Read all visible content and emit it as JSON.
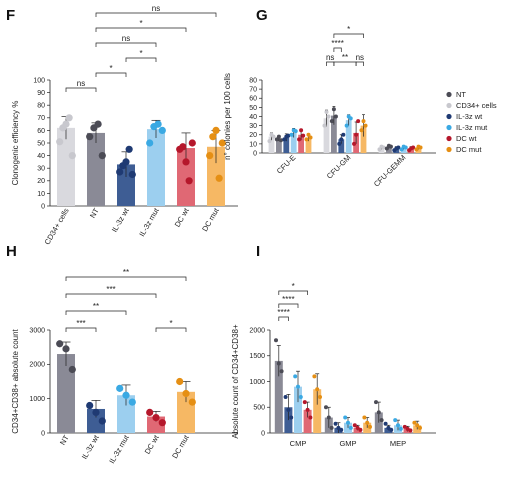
{
  "panels": [
    {
      "letter": "F",
      "type": "bar",
      "ylabel": "Clonogenic efficiency %",
      "ylim": [
        0,
        100
      ],
      "yticks": [
        0,
        10,
        20,
        30,
        40,
        50,
        60,
        70,
        80,
        90,
        100
      ],
      "categories": [
        "CD34+ cells",
        "NT",
        "IL-3z wt",
        "IL-3z mut",
        "DC wt",
        "DC mut"
      ],
      "colors": [
        "#d9d9de",
        "#8a8a96",
        "#3e5d94",
        "#9ccfef",
        "#e06874",
        "#f6b864"
      ],
      "dot_colors": [
        "#c8c8ce",
        "#4b4b55",
        "#1f3a73",
        "#3aa9e3",
        "#b5172b",
        "#e58f14"
      ],
      "means": [
        62,
        58,
        33,
        61,
        46,
        47
      ],
      "errors": [
        9,
        8,
        10,
        7,
        12,
        13
      ],
      "points": [
        [
          51,
          62,
          65,
          70,
          40
        ],
        [
          55,
          62,
          65,
          40
        ],
        [
          27,
          32,
          35,
          45,
          25
        ],
        [
          50,
          63,
          65,
          60
        ],
        [
          45,
          47,
          35,
          20,
          50
        ],
        [
          40,
          55,
          60,
          22,
          50
        ]
      ],
      "comparisons": [
        {
          "from": 0,
          "to": 1,
          "label": "ns"
        },
        {
          "from": 1,
          "to": 2,
          "label": "*"
        },
        {
          "from": 2,
          "to": 3,
          "label": "*"
        },
        {
          "from": 1,
          "to": 3,
          "label": "ns"
        },
        {
          "from": 1,
          "to": 4,
          "label": "*"
        },
        {
          "from": 1,
          "to": 5,
          "label": "ns"
        }
      ]
    },
    {
      "letter": "G",
      "type": "grouped-bar",
      "ylabel": "n° colonies per 100 cells",
      "ylim": [
        0,
        80
      ],
      "yticks": [
        0,
        10,
        20,
        30,
        40,
        50,
        60,
        70,
        80
      ],
      "groups": [
        "CFU-E",
        "CFU-GM",
        "CFU-GEMM"
      ],
      "series_names": [
        "NT",
        "CD34+ cells",
        "IL-3z wt",
        "IL-3z mut",
        "DC wt",
        "DC mut"
      ],
      "colors": [
        "#8a8a96",
        "#d9d9de",
        "#3e5d94",
        "#9ccfef",
        "#e06874",
        "#f6b864"
      ],
      "dot_colors": [
        "#4b4b55",
        "#c8c8ce",
        "#1f3a73",
        "#3aa9e3",
        "#b5172b",
        "#e58f14"
      ],
      "legend_colors": [
        "#4b4b55",
        "#c8c8ce",
        "#1f3a73",
        "#3aa9e3",
        "#b5172b",
        "#e58f14"
      ],
      "series_order": [
        1,
        0,
        2,
        3,
        4,
        5
      ],
      "means": [
        [
          16,
          18,
          17,
          22,
          20,
          17
        ],
        [
          41,
          38,
          15,
          36,
          22,
          30
        ],
        [
          7,
          6,
          5,
          6,
          5,
          6
        ]
      ],
      "errors": [
        [
          3,
          4,
          4,
          5,
          6,
          4
        ],
        [
          10,
          9,
          5,
          6,
          12,
          12
        ],
        [
          2,
          2,
          2,
          2,
          2,
          2
        ]
      ],
      "points": [
        [
          [
            15,
            18,
            14
          ],
          [
            13,
            20,
            18
          ],
          [
            15,
            18,
            19
          ],
          [
            20,
            25,
            24
          ],
          [
            15,
            25,
            19
          ],
          [
            15,
            20,
            17
          ]
        ],
        [
          [
            35,
            48,
            40
          ],
          [
            30,
            45,
            40
          ],
          [
            10,
            15,
            20
          ],
          [
            30,
            40,
            38
          ],
          [
            10,
            20,
            35
          ],
          [
            25,
            35,
            30
          ]
        ],
        [
          [
            5,
            8,
            7
          ],
          [
            4,
            7,
            6
          ],
          [
            3,
            5,
            6
          ],
          [
            4,
            7,
            6
          ],
          [
            3,
            5,
            6
          ],
          [
            4,
            7,
            6
          ]
        ]
      ],
      "comparisons": [
        {
          "from": 0,
          "to": 1,
          "label": "ns",
          "level": 0
        },
        {
          "from": 1,
          "to": 2,
          "label": "****",
          "level": 1
        },
        {
          "from": 1,
          "to": 4,
          "label": "**",
          "level": 0
        },
        {
          "from": 4,
          "to": 5,
          "label": "ns",
          "level": 0
        },
        {
          "from": 1,
          "to": 5,
          "label": "*",
          "level": 2
        }
      ]
    },
    {
      "letter": "H",
      "type": "bar",
      "ylabel": "CD34+CD38+ absolute count",
      "ylim": [
        0,
        3000
      ],
      "yticks": [
        0,
        1000,
        2000,
        3000
      ],
      "categories": [
        "NT",
        "IL-3z wt",
        "IL-3z mut",
        "DC wt",
        "DC mut"
      ],
      "colors": [
        "#8a8a96",
        "#3e5d94",
        "#9ccfef",
        "#e06874",
        "#f6b864"
      ],
      "dot_colors": [
        "#4b4b55",
        "#1f3a73",
        "#3aa9e3",
        "#b5172b",
        "#e58f14"
      ],
      "means": [
        2300,
        700,
        1100,
        480,
        1200
      ],
      "errors": [
        350,
        250,
        300,
        150,
        300
      ],
      "points": [
        [
          2600,
          2450,
          1850
        ],
        [
          800,
          600,
          350
        ],
        [
          1300,
          1100,
          900
        ],
        [
          600,
          450,
          300
        ],
        [
          1500,
          1150,
          900
        ]
      ],
      "comparisons": [
        {
          "from": 0,
          "to": 1,
          "label": "***",
          "level": 0
        },
        {
          "from": 3,
          "to": 4,
          "label": "*",
          "level": 0
        },
        {
          "from": 0,
          "to": 2,
          "label": "**",
          "level": 1
        },
        {
          "from": 0,
          "to": 3,
          "label": "***",
          "level": 2
        },
        {
          "from": 0,
          "to": 4,
          "label": "**",
          "level": 3
        }
      ]
    },
    {
      "letter": "I",
      "type": "grouped-bar",
      "ylabel": "Absolute count of CD34+CD38+",
      "ylim": [
        0,
        2000
      ],
      "yticks": [
        0,
        500,
        1000,
        1500,
        2000
      ],
      "groups": [
        "CMP",
        "GMP",
        "MEP"
      ],
      "series_names": [
        "NT",
        "IL-3z wt",
        "IL-3z mut",
        "DC wt",
        "DC mut"
      ],
      "colors": [
        "#8a8a96",
        "#3e5d94",
        "#9ccfef",
        "#e06874",
        "#f6b864"
      ],
      "dot_colors": [
        "#4b4b55",
        "#1f3a73",
        "#3aa9e3",
        "#b5172b",
        "#e58f14"
      ],
      "means": [
        [
          1400,
          500,
          900,
          450,
          850
        ],
        [
          300,
          100,
          200,
          100,
          200
        ],
        [
          400,
          100,
          150,
          80,
          150
        ]
      ],
      "errors": [
        [
          300,
          250,
          300,
          150,
          300
        ],
        [
          200,
          100,
          100,
          50,
          100
        ],
        [
          200,
          50,
          100,
          50,
          80
        ]
      ],
      "points": [
        [
          [
            1800,
            1350,
            1200
          ],
          [
            700,
            450,
            300
          ],
          [
            1100,
            900,
            700
          ],
          [
            600,
            450,
            300
          ],
          [
            1100,
            850,
            700
          ]
        ],
        [
          [
            500,
            300,
            100
          ],
          [
            180,
            100,
            60
          ],
          [
            300,
            200,
            100
          ],
          [
            150,
            100,
            60
          ],
          [
            300,
            200,
            120
          ]
        ],
        [
          [
            600,
            400,
            250
          ],
          [
            180,
            100,
            60
          ],
          [
            250,
            150,
            80
          ],
          [
            120,
            80,
            50
          ],
          [
            200,
            150,
            100
          ]
        ]
      ],
      "comparisons": [
        {
          "from": 0,
          "to": 1,
          "label": "****",
          "level": 0
        },
        {
          "from": 0,
          "to": 2,
          "label": "****",
          "level": 1
        },
        {
          "from": 0,
          "to": 3,
          "label": "*",
          "level": 2
        }
      ]
    }
  ]
}
